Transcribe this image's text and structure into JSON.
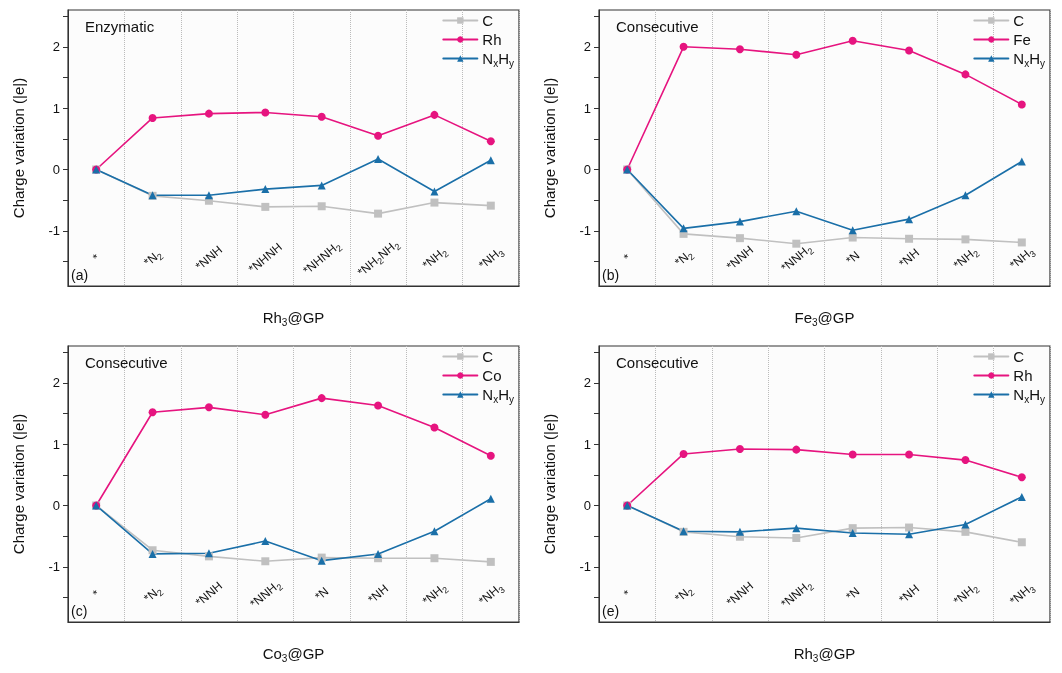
{
  "chart_data": [
    {
      "type": "line",
      "title": "Enzymatic",
      "xlabel": "Rh$_{3}$@GP",
      "ylabel": "Charge variation (|e|)",
      "annotations": [
        "(a)"
      ],
      "categories": [
        "*",
        "*N$_{2}$",
        "*NNH",
        "*NHNH",
        "*NHNH$_{2}$",
        "*NH$_{2}$NH$_{2}$",
        "*NH$_{2}$",
        "*NH$_{3}$"
      ],
      "series": [
        {
          "name": "C",
          "color": "#c0c0c0",
          "marker": "square",
          "values": [
            0,
            -0.43,
            -0.51,
            -0.61,
            -0.6,
            -0.72,
            -0.54,
            -0.59
          ]
        },
        {
          "name": "Rh",
          "color": "#e6147f",
          "marker": "circle",
          "values": [
            0,
            0.84,
            0.91,
            0.93,
            0.86,
            0.55,
            0.89,
            0.46
          ]
        },
        {
          "name": "N$_{x}$H$_{y}$",
          "color": "#1a6fa8",
          "marker": "triangle",
          "values": [
            0,
            -0.42,
            -0.42,
            -0.32,
            -0.26,
            0.17,
            -0.36,
            0.15
          ]
        }
      ],
      "ylim": [
        -1.9,
        2.6
      ],
      "yticks": [
        {
          "value": -1.5,
          "label": null
        },
        -1,
        {
          "value": -0.5,
          "label": null
        },
        0,
        {
          "value": 0.5,
          "label": null
        },
        1,
        {
          "value": 1.5,
          "label": null
        },
        2,
        {
          "value": 2.5,
          "label": null
        }
      ],
      "grid": "x",
      "legend": "top right"
    },
    {
      "type": "line",
      "title": "Consecutive",
      "xlabel": "Fe$_{3}$@GP",
      "ylabel": "Charge variation (|e|)",
      "annotations": [
        "(b)"
      ],
      "categories": [
        "*",
        "*N$_{2}$",
        "*NNH",
        "*NNH$_{2}$",
        "*N",
        "*NH",
        "*NH$_{2}$",
        "*NH$_{3}$"
      ],
      "series": [
        {
          "name": "C",
          "color": "#c0c0c0",
          "marker": "square",
          "values": [
            0,
            -1.05,
            -1.12,
            -1.21,
            -1.11,
            -1.13,
            -1.14,
            -1.19
          ]
        },
        {
          "name": "Fe",
          "color": "#e6147f",
          "marker": "circle",
          "values": [
            0,
            2.0,
            1.96,
            1.87,
            2.1,
            1.94,
            1.55,
            1.06
          ]
        },
        {
          "name": "N$_{x}$H$_{y}$",
          "color": "#1a6fa8",
          "marker": "triangle",
          "values": [
            0,
            -0.96,
            -0.85,
            -0.68,
            -0.99,
            -0.81,
            -0.42,
            0.13
          ]
        }
      ],
      "ylim": [
        -1.9,
        2.6
      ],
      "yticks": [
        {
          "value": -1.5,
          "label": null
        },
        -1,
        {
          "value": -0.5,
          "label": null
        },
        0,
        {
          "value": 0.5,
          "label": null
        },
        1,
        {
          "value": 1.5,
          "label": null
        },
        2,
        {
          "value": 2.5,
          "label": null
        }
      ],
      "grid": "x",
      "legend": "top right"
    },
    {
      "type": "line",
      "title": "Consecutive",
      "xlabel": "Co$_{3}$@GP",
      "ylabel": "Charge variation (|e|)",
      "annotations": [
        "(c)"
      ],
      "categories": [
        "*",
        "*N$_{2}$",
        "*NNH",
        "*NNH$_{2}$",
        "*N",
        "*NH",
        "*NH$_{2}$",
        "*NH$_{3}$"
      ],
      "series": [
        {
          "name": "C",
          "color": "#c0c0c0",
          "marker": "square",
          "values": [
            0,
            -0.73,
            -0.83,
            -0.91,
            -0.85,
            -0.86,
            -0.86,
            -0.92
          ]
        },
        {
          "name": "Co",
          "color": "#e6147f",
          "marker": "circle",
          "values": [
            0,
            1.52,
            1.6,
            1.48,
            1.75,
            1.63,
            1.27,
            0.81
          ]
        },
        {
          "name": "N$_{x}$H$_{y}$",
          "color": "#1a6fa8",
          "marker": "triangle",
          "values": [
            0,
            -0.79,
            -0.78,
            -0.58,
            -0.9,
            -0.79,
            -0.42,
            0.11
          ]
        }
      ],
      "ylim": [
        -1.9,
        2.6
      ],
      "yticks": [
        {
          "value": -1.5,
          "label": null
        },
        -1,
        {
          "value": -0.5,
          "label": null
        },
        0,
        {
          "value": 0.5,
          "label": null
        },
        1,
        {
          "value": 1.5,
          "label": null
        },
        2,
        {
          "value": 2.5,
          "label": null
        }
      ],
      "grid": "x",
      "legend": "top right"
    },
    {
      "type": "line",
      "title": "Consecutive",
      "xlabel": "Rh$_{3}$@GP",
      "ylabel": "Charge variation (|e|)",
      "annotations": [
        "(e)"
      ],
      "categories": [
        "*",
        "*N$_{2}$",
        "*NNH",
        "*NNH$_{2}$",
        "*N",
        "*NH",
        "*NH$_{2}$",
        "*NH$_{3}$"
      ],
      "series": [
        {
          "name": "C",
          "color": "#c0c0c0",
          "marker": "square",
          "values": [
            0,
            -0.43,
            -0.51,
            -0.53,
            -0.37,
            -0.36,
            -0.43,
            -0.6
          ]
        },
        {
          "name": "Rh",
          "color": "#e6147f",
          "marker": "circle",
          "values": [
            0,
            0.84,
            0.92,
            0.91,
            0.83,
            0.83,
            0.74,
            0.46
          ]
        },
        {
          "name": "N$_{x}$H$_{y}$",
          "color": "#1a6fa8",
          "marker": "triangle",
          "values": [
            0,
            -0.42,
            -0.43,
            -0.37,
            -0.45,
            -0.47,
            -0.31,
            0.14
          ]
        }
      ],
      "ylim": [
        -1.9,
        2.6
      ],
      "yticks": [
        {
          "value": -1.5,
          "label": null
        },
        -1,
        {
          "value": -0.5,
          "label": null
        },
        0,
        {
          "value": 0.5,
          "label": null
        },
        1,
        {
          "value": 1.5,
          "label": null
        },
        2,
        {
          "value": 2.5,
          "label": null
        }
      ],
      "grid": "x",
      "legend": "top right"
    }
  ]
}
